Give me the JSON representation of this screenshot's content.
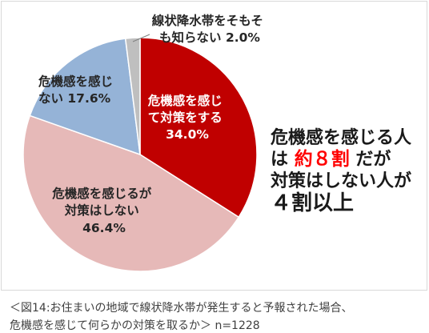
{
  "chart_data": {
    "type": "pie",
    "title": "",
    "slices": [
      {
        "lines": [
          "危機感を感じ",
          "て対策をする",
          "34.0%"
        ],
        "value": 34.0,
        "color": "#C00000"
      },
      {
        "lines": [
          "危機感を感じるが",
          "対策はしない",
          "46.4%"
        ],
        "value": 46.4,
        "color": "#E6B9B8"
      },
      {
        "lines": [
          "危機感を感じ",
          "ない 17.6%"
        ],
        "value": 17.6,
        "color": "#95B3D7"
      },
      {
        "lines": [
          "線状降水帯をそもそ",
          "も知らない 2.0%"
        ],
        "value": 2.0,
        "color": "#BFBFBF"
      }
    ]
  },
  "annotation": {
    "line1": "危機感を感じる人",
    "line2_pre": "は",
    "line2_em": "約８割",
    "line2_post": "だが",
    "line3": "対策はしない人が",
    "line4_em": "４割以上",
    "emphasis_color": "#FF0000"
  },
  "caption": {
    "line1": "＜図14:お住まいの地域で線状降水帯が発生すると予報された場合、",
    "line2": "危機感を感じて何らかの対策を取るか＞ n=1228"
  }
}
